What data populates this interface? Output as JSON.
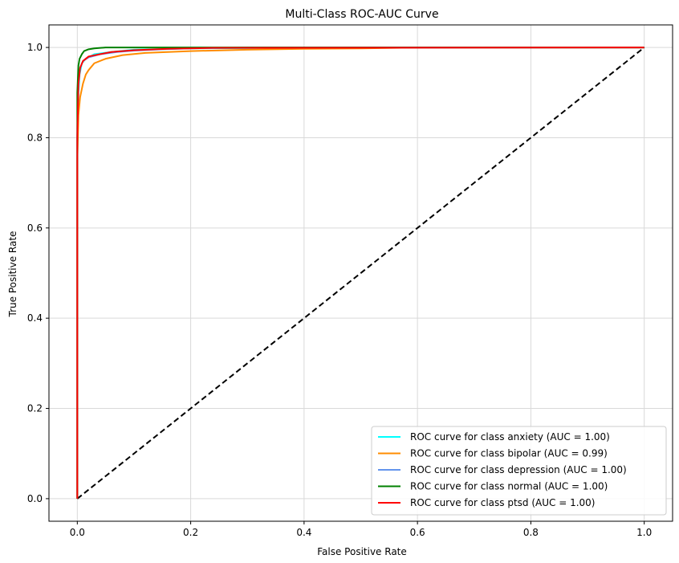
{
  "chart_data": {
    "type": "line",
    "title": "Multi-Class ROC-AUC Curve",
    "xlabel": "False Positive Rate",
    "ylabel": "True Positive Rate",
    "xlim": [
      -0.05,
      1.05
    ],
    "ylim": [
      -0.05,
      1.05
    ],
    "xticks": [
      0.0,
      0.2,
      0.4,
      0.6,
      0.8,
      1.0
    ],
    "yticks": [
      0.0,
      0.2,
      0.4,
      0.6,
      0.8,
      1.0
    ],
    "xtick_labels": [
      "0.0",
      "0.2",
      "0.4",
      "0.6",
      "0.8",
      "1.0"
    ],
    "ytick_labels": [
      "0.0",
      "0.2",
      "0.4",
      "0.6",
      "0.8",
      "1.0"
    ],
    "grid": true,
    "legend_position": "lower-right",
    "series": [
      {
        "name": "ROC curve for class anxiety (AUC = 1.00)",
        "color": "#00ffff",
        "x": [
          0.0,
          0.0,
          0.002,
          0.004,
          0.008,
          0.015,
          0.03,
          0.06,
          0.1,
          0.2,
          0.4,
          0.7,
          1.0
        ],
        "y": [
          0.0,
          0.8,
          0.9,
          0.94,
          0.965,
          0.975,
          0.985,
          0.99,
          0.995,
          0.998,
          0.999,
          1.0,
          1.0
        ]
      },
      {
        "name": "ROC curve for class bipolar (AUC = 0.99)",
        "color": "#ff8c00",
        "x": [
          0.0,
          0.0,
          0.002,
          0.005,
          0.01,
          0.015,
          0.02,
          0.03,
          0.05,
          0.08,
          0.12,
          0.2,
          0.3,
          0.4,
          0.5,
          0.62,
          1.0
        ],
        "y": [
          0.0,
          0.75,
          0.85,
          0.89,
          0.92,
          0.94,
          0.95,
          0.965,
          0.975,
          0.983,
          0.988,
          0.992,
          0.995,
          0.997,
          0.998,
          1.0,
          1.0
        ]
      },
      {
        "name": "ROC curve for class depression (AUC = 1.00)",
        "color": "#6495ed",
        "x": [
          0.0,
          0.0,
          0.002,
          0.005,
          0.01,
          0.02,
          0.04,
          0.07,
          0.1,
          0.15,
          0.2,
          0.3,
          1.0
        ],
        "y": [
          0.0,
          0.82,
          0.92,
          0.955,
          0.97,
          0.978,
          0.985,
          0.99,
          0.993,
          0.996,
          0.998,
          1.0,
          1.0
        ]
      },
      {
        "name": "ROC curve for class normal (AUC = 1.00)",
        "color": "#008000",
        "x": [
          0.0,
          0.0,
          0.002,
          0.004,
          0.008,
          0.012,
          0.02,
          0.03,
          0.05,
          1.0
        ],
        "y": [
          0.0,
          0.9,
          0.96,
          0.975,
          0.985,
          0.992,
          0.996,
          0.998,
          1.0,
          1.0
        ]
      },
      {
        "name": "ROC curve for class ptsd (AUC = 1.00)",
        "color": "#ff0000",
        "x": [
          0.0,
          0.0,
          0.002,
          0.005,
          0.01,
          0.02,
          0.04,
          0.06,
          0.1,
          0.16,
          0.24,
          1.0
        ],
        "y": [
          0.0,
          0.8,
          0.92,
          0.955,
          0.97,
          0.98,
          0.985,
          0.99,
          0.994,
          0.997,
          0.999,
          1.0
        ]
      }
    ],
    "reference_line": {
      "color": "#000000",
      "style": "dashed",
      "x": [
        0.0,
        1.0
      ],
      "y": [
        0.0,
        1.0
      ]
    }
  }
}
